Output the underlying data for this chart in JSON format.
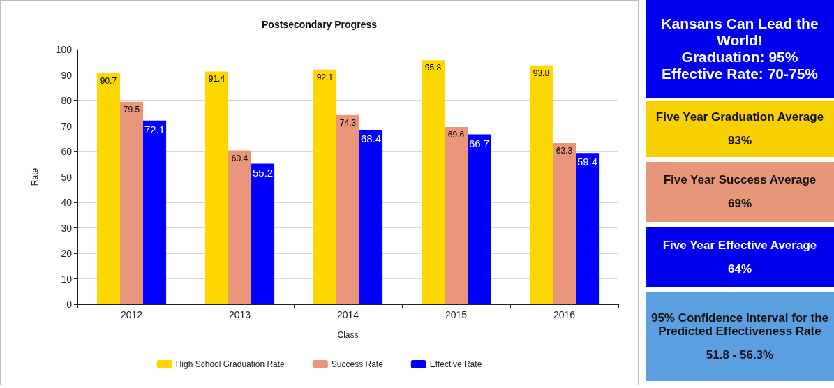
{
  "chart_data": [
    {
      "type": "bar",
      "title": "Postsecondary Progress",
      "xlabel": "Class",
      "ylabel": "Rate",
      "categories": [
        "2012",
        "2013",
        "2014",
        "2015",
        "2016"
      ],
      "series": [
        {
          "name": "High School Graduation Rate",
          "color": "#ffd700",
          "values": [
            90.7,
            91.4,
            92.1,
            95.8,
            93.8
          ]
        },
        {
          "name": "Success Rate",
          "color": "#e9967a",
          "values": [
            79.5,
            60.4,
            74.3,
            69.6,
            63.3
          ]
        },
        {
          "name": "Effective Rate",
          "color": "#0000ff",
          "values": [
            72.1,
            55.2,
            68.4,
            66.7,
            59.4
          ]
        }
      ],
      "ylim": [
        0,
        100
      ],
      "yticks": [
        0,
        10,
        20,
        30,
        40,
        50,
        60,
        70,
        80,
        90,
        100
      ],
      "grid": "y",
      "legend": "bottom",
      "data_labels": true
    },
    {
      "type": "other",
      "title": "Kansans Can Lead the World!",
      "annotations": [
        "Graduation: 95%",
        "Effective Rate: 70-75%"
      ]
    },
    {
      "type": "other",
      "title": "Five Year Graduation Average",
      "annotations": [
        "93%"
      ]
    },
    {
      "type": "other",
      "title": "Five Year Success Average",
      "annotations": [
        "69%"
      ]
    },
    {
      "type": "other",
      "title": "Five Year Effective Average",
      "annotations": [
        "64%"
      ]
    },
    {
      "type": "other",
      "title": "95% Confidence Interval for the Predicted Effectiveness Rate",
      "annotations": [
        "51.8 - 56.3%"
      ]
    }
  ]
}
